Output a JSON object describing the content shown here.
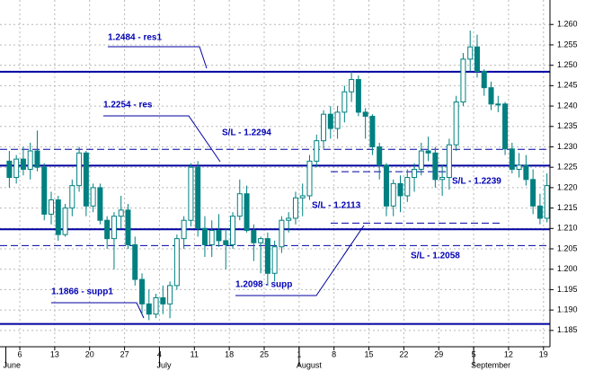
{
  "chart_data": {
    "type": "candlestick",
    "categories": [
      null,
      null,
      "6",
      null,
      null,
      null,
      null,
      "13",
      null,
      null,
      null,
      null,
      "20",
      null,
      null,
      null,
      null,
      "27",
      null,
      null,
      null,
      null,
      "4",
      null,
      null,
      null,
      null,
      "11",
      null,
      null,
      null,
      null,
      "18",
      null,
      null,
      null,
      null,
      "25",
      null,
      null,
      null,
      null,
      "1",
      null,
      null,
      null,
      null,
      "8",
      null,
      null,
      null,
      null,
      "15",
      null,
      null,
      null,
      null,
      "22",
      null,
      null,
      null,
      null,
      "29",
      null,
      null,
      null,
      null,
      "5",
      null,
      null,
      null,
      null,
      "12",
      null,
      null,
      null,
      null,
      "19"
    ],
    "months": [
      {
        "label": "June",
        "at": 0
      },
      {
        "label": "July",
        "at": 22
      },
      {
        "label": "August",
        "at": 42
      },
      {
        "label": "September",
        "at": 67
      }
    ],
    "open": [
      1.2265,
      1.2225,
      1.227,
      1.2245,
      1.229,
      1.225,
      1.2135,
      1.217,
      1.2085,
      1.215,
      1.2205,
      1.2285,
      1.2155,
      1.22,
      1.212,
      1.2075,
      1.213,
      1.2145,
      1.206,
      1.1975,
      1.1915,
      1.189,
      1.193,
      1.1915,
      1.196,
      1.2075,
      1.212,
      1.225,
      1.21,
      1.206,
      1.2095,
      1.207,
      1.206,
      1.213,
      1.2185,
      1.2095,
      1.2065,
      1.2075,
      1.199,
      1.2055,
      1.212,
      1.2125,
      1.2175,
      1.218,
      1.2265,
      1.2315,
      1.238,
      1.2345,
      1.2385,
      1.2435,
      1.2465,
      1.2385,
      1.2375,
      1.23,
      1.2255,
      1.2155,
      1.221,
      1.218,
      1.2225,
      1.2245,
      1.229,
      1.2285,
      1.222,
      1.2225,
      1.2305,
      1.241,
      1.2515,
      1.2545,
      1.2485,
      1.2445,
      1.2405,
      1.2405,
      1.2295,
      1.2245,
      1.2255,
      1.222,
      1.2155,
      1.2125
    ],
    "high": [
      1.229,
      1.228,
      1.23,
      1.231,
      1.234,
      1.226,
      1.219,
      1.218,
      1.216,
      1.222,
      1.23,
      1.229,
      1.221,
      1.221,
      1.213,
      1.214,
      1.218,
      1.216,
      1.208,
      1.199,
      1.195,
      1.194,
      1.196,
      1.197,
      1.2085,
      1.213,
      1.226,
      1.2265,
      1.213,
      1.212,
      1.2135,
      1.21,
      1.214,
      1.222,
      1.2205,
      1.211,
      1.208,
      1.209,
      1.207,
      1.213,
      1.214,
      1.219,
      1.221,
      1.228,
      1.233,
      1.239,
      1.24,
      1.24,
      1.245,
      1.2485,
      1.2475,
      1.2395,
      1.238,
      1.231,
      1.226,
      1.222,
      1.223,
      1.2245,
      1.226,
      1.231,
      1.2325,
      1.23,
      1.2255,
      1.232,
      1.2425,
      1.253,
      1.2585,
      1.2575,
      1.249,
      1.246,
      1.2425,
      1.241,
      1.231,
      1.2285,
      1.228,
      1.2245,
      1.2185,
      1.2235
    ],
    "low": [
      1.22,
      1.221,
      1.223,
      1.222,
      1.224,
      1.212,
      1.211,
      1.207,
      1.208,
      1.213,
      1.219,
      1.213,
      1.214,
      1.211,
      1.205,
      1.2,
      1.21,
      1.205,
      1.196,
      1.189,
      1.1875,
      1.188,
      1.189,
      1.188,
      1.195,
      1.205,
      1.2105,
      1.208,
      1.203,
      1.203,
      1.2055,
      1.2,
      1.205,
      1.212,
      1.209,
      1.202,
      1.199,
      1.196,
      1.197,
      1.204,
      1.209,
      1.211,
      1.213,
      1.217,
      1.225,
      1.2295,
      1.232,
      1.232,
      1.236,
      1.241,
      1.2375,
      1.232,
      1.228,
      1.222,
      1.213,
      1.213,
      1.214,
      1.2165,
      1.219,
      1.223,
      1.2265,
      1.22,
      1.218,
      1.2195,
      1.229,
      1.24,
      1.2485,
      1.247,
      1.2425,
      1.239,
      1.2385,
      1.228,
      1.2235,
      1.2225,
      1.2205,
      1.2135,
      1.211,
      1.2115
    ],
    "close": [
      1.2225,
      1.227,
      1.2245,
      1.229,
      1.225,
      1.2135,
      1.217,
      1.2085,
      1.215,
      1.2205,
      1.2285,
      1.2155,
      1.22,
      1.212,
      1.2075,
      1.213,
      1.2145,
      1.206,
      1.1975,
      1.1915,
      1.189,
      1.193,
      1.1915,
      1.196,
      1.2075,
      1.212,
      1.225,
      1.21,
      1.206,
      1.2095,
      1.207,
      1.206,
      1.213,
      1.2185,
      1.2095,
      1.2065,
      1.2075,
      1.199,
      1.2055,
      1.212,
      1.2125,
      1.2175,
      1.218,
      1.2265,
      1.2315,
      1.238,
      1.2345,
      1.2385,
      1.2435,
      1.2465,
      1.2385,
      1.2375,
      1.23,
      1.2255,
      1.2155,
      1.221,
      1.218,
      1.2225,
      1.2245,
      1.229,
      1.2285,
      1.222,
      1.2225,
      1.2305,
      1.241,
      1.2515,
      1.2545,
      1.2485,
      1.2445,
      1.2405,
      1.2405,
      1.2295,
      1.2245,
      1.2255,
      1.222,
      1.2155,
      1.2125,
      1.2205
    ],
    "color": "#008080",
    "ylim": [
      1.181,
      1.266
    ],
    "yticks": [
      {
        "value": 1.185,
        "label": "1.185"
      },
      {
        "value": 1.19,
        "label": "1.190"
      },
      {
        "value": 1.195,
        "label": "1.195"
      },
      {
        "value": 1.2,
        "label": "1.200"
      },
      {
        "value": 1.205,
        "label": "1.205"
      },
      {
        "value": 1.21,
        "label": "1.210"
      },
      {
        "value": 1.215,
        "label": "1.215"
      },
      {
        "value": 1.22,
        "label": "1.220"
      },
      {
        "value": 1.225,
        "label": "1.225"
      },
      {
        "value": 1.23,
        "label": "1.230"
      },
      {
        "value": 1.235,
        "label": "1.235"
      },
      {
        "value": 1.24,
        "label": "1.240"
      },
      {
        "value": 1.245,
        "label": "1.245"
      },
      {
        "value": 1.25,
        "label": "1.250"
      },
      {
        "value": 1.255,
        "label": "1.255"
      },
      {
        "value": 1.26,
        "label": "1.260"
      }
    ],
    "grid": true,
    "levels": [
      {
        "value": 1.2484,
        "label": "1.2484 - res1",
        "style": "solid"
      },
      {
        "value": 1.2254,
        "label": "1.2254 - res",
        "style": "solid"
      },
      {
        "value": 1.2294,
        "label": "S/L - 1.2294",
        "style": "dashed"
      },
      {
        "value": 1.2239,
        "label": "S/L - 1.2239",
        "style": "dashed"
      },
      {
        "value": 1.2113,
        "label": "S/L - 1.2113",
        "style": "dashed"
      },
      {
        "value": 1.2098,
        "label": "1.2098 - supp",
        "style": "solid"
      },
      {
        "value": 1.2058,
        "label": "S/L - 1.2058",
        "style": "dashed"
      },
      {
        "value": 1.1866,
        "label": "1.1866 - supp1",
        "style": "solid"
      }
    ],
    "level_color": "#0000a0"
  }
}
